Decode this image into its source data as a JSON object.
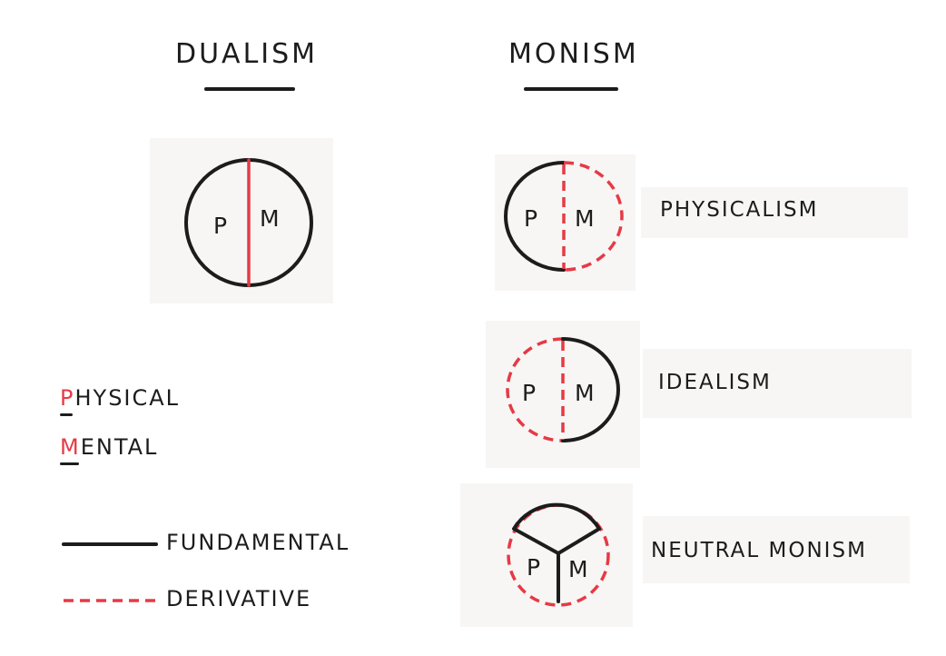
{
  "headings": {
    "left": "DUALISM",
    "right": "MONISM"
  },
  "diagrams": {
    "dualism": {
      "p": "P",
      "m": "M"
    },
    "physicalism": {
      "p": "P",
      "m": "M",
      "label": "PHYSICALISM"
    },
    "idealism": {
      "p": "P",
      "m": "M",
      "label": "IDEALISM"
    },
    "neutral_monism": {
      "p": "P",
      "m": "M",
      "label": "NEUTRAL MONISM"
    }
  },
  "key": {
    "physical_initial": "P",
    "physical_rest": "HYSICAL",
    "mental_initial": "M",
    "mental_rest": "ENTAL"
  },
  "line_legend": {
    "fundamental": "FUNDAMENTAL",
    "derivative": "DERIVATIVE"
  },
  "colors": {
    "ink": "#1c1c1c",
    "accent_red": "#e63a45"
  }
}
